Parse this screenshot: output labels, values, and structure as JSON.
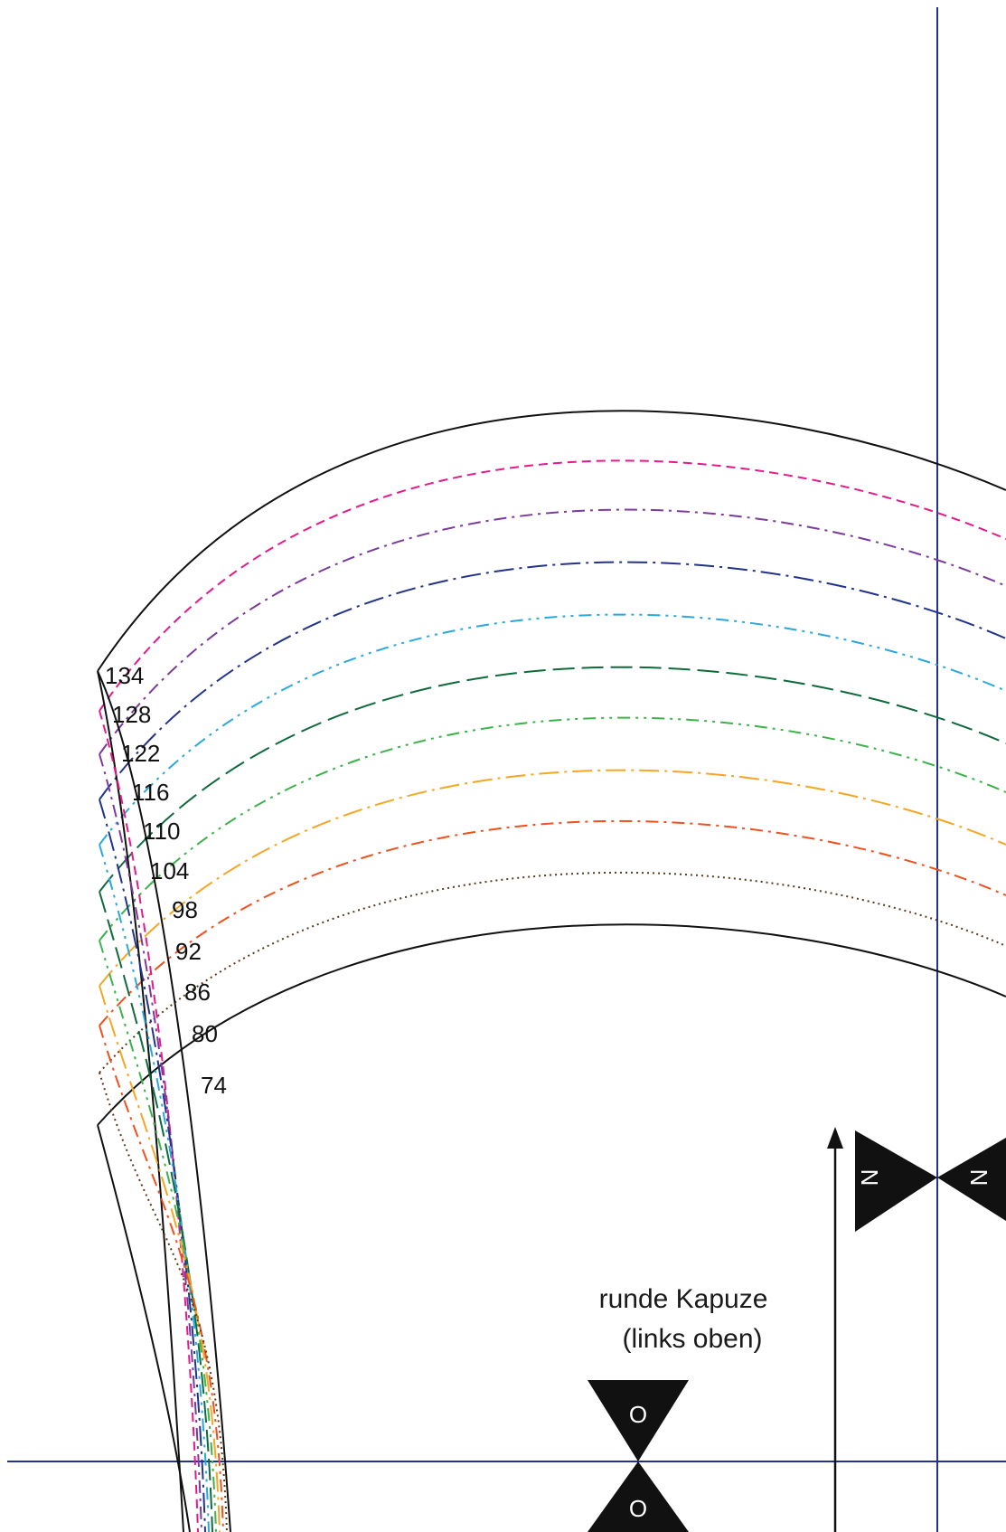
{
  "title": {
    "line1": "runde Kapuze",
    "line2": "(links oben)"
  },
  "size_lines": [
    {
      "size": "134",
      "color": "#111111",
      "dash": "solid"
    },
    {
      "size": "128",
      "color": "#e6198a",
      "dash": "dashed"
    },
    {
      "size": "122",
      "color": "#7b3a9e",
      "dash": "dash-dot"
    },
    {
      "size": "116",
      "color": "#22338c",
      "dash": "long-dash-dot"
    },
    {
      "size": "110",
      "color": "#29a8e0",
      "dash": "dash-dot-dot"
    },
    {
      "size": "104",
      "color": "#0f6a3c",
      "dash": "long-dash"
    },
    {
      "size": "98",
      "color": "#3cb34a",
      "dash": "dash-dot-dot"
    },
    {
      "size": "92",
      "color": "#f5a623",
      "dash": "long-dash-dot"
    },
    {
      "size": "86",
      "color": "#f0501e",
      "dash": "dash-dot"
    },
    {
      "size": "80",
      "color": "#5a3a1e",
      "dash": "dotted"
    },
    {
      "size": "74",
      "color": "#111111",
      "dash": "solid"
    }
  ],
  "notches": {
    "n_left": "N",
    "n_right": "N",
    "o_top": "O",
    "o_bottom": "O"
  },
  "guide_color": "#22338c",
  "mark_color": "#111111"
}
